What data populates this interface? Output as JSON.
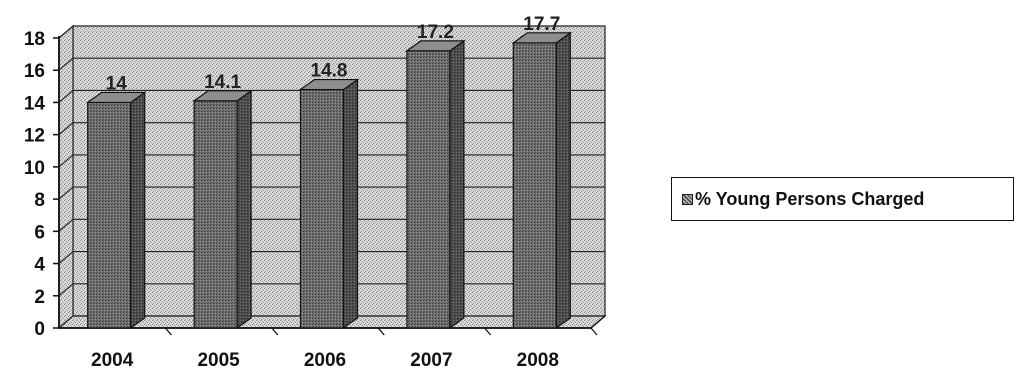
{
  "chart_data": {
    "type": "bar",
    "categories": [
      "2004",
      "2005",
      "2006",
      "2007",
      "2008"
    ],
    "series": [
      {
        "name": "% Young Persons Charged",
        "values": [
          14,
          14.1,
          14.8,
          17.2,
          17.7
        ]
      }
    ],
    "data_labels": [
      "14",
      "14.1",
      "14.8",
      "17.2",
      "17.7"
    ],
    "y_ticks": [
      "0",
      "2",
      "4",
      "6",
      "8",
      "10",
      "12",
      "14",
      "16",
      "18"
    ],
    "ylim": [
      0,
      18
    ],
    "grid": true,
    "three_d": true,
    "legend_position": "right",
    "colors": {
      "bar_front": "#7a7a7a",
      "bar_side": "#4a4a4a",
      "bar_top": "#9a9a9a",
      "wall": "#d6d6d6",
      "floor": "#cfcfcf",
      "grid": "#222222"
    }
  }
}
